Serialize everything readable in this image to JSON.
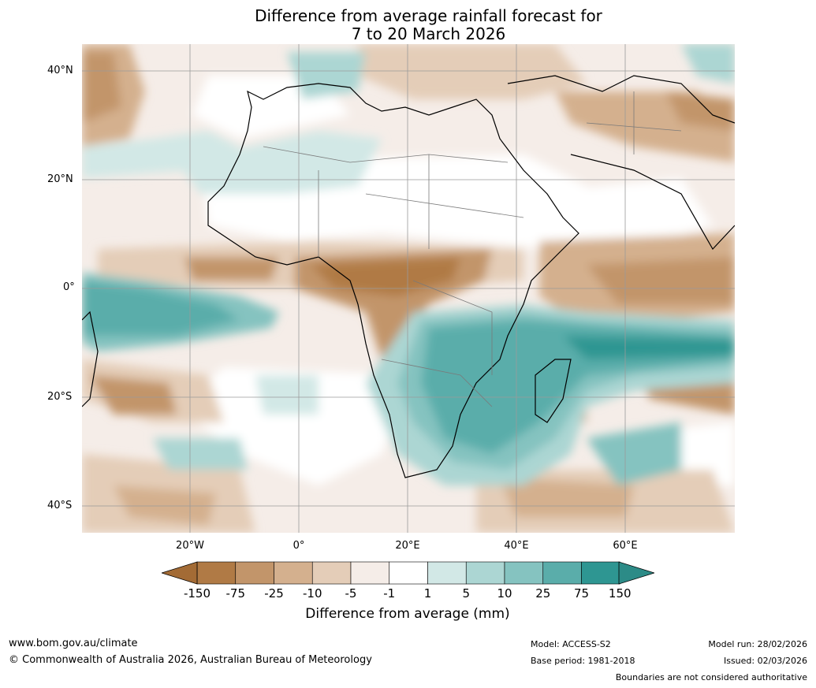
{
  "title": {
    "line1": "Difference from average rainfall forecast for",
    "line2": "7 to 20 March 2026"
  },
  "map": {
    "lat_labels": [
      "40°N",
      "20°N",
      "0°",
      "20°S",
      "40°S"
    ],
    "lon_labels": [
      "20°W",
      "0°",
      "20°E",
      "40°E",
      "60°E"
    ]
  },
  "colorbar": {
    "ticks": [
      "-150",
      "-75",
      "-25",
      "-10",
      "-5",
      "-1",
      "1",
      "5",
      "10",
      "25",
      "75",
      "150"
    ],
    "colors": [
      "#a36b35",
      "#b07a45",
      "#c2956a",
      "#d4b08e",
      "#e4cdb8",
      "#f5ede8",
      "#ffffff",
      "#d2e8e6",
      "#acd6d3",
      "#85c3c0",
      "#5aadaa",
      "#2e9692",
      "#2c8b87"
    ],
    "label": "Difference from average (mm)"
  },
  "footer": {
    "website": "www.bom.gov.au/climate",
    "copyright": "© Commonwealth of Australia 2026, Australian Bureau of Meteorology",
    "model": "Model: ACCESS-S2",
    "base_period": "Base period: 1981-2018",
    "model_run": "Model run: 28/02/2026",
    "issued": "Issued: 02/03/2026",
    "disclaimer": "Boundaries are not considered authoritative"
  }
}
